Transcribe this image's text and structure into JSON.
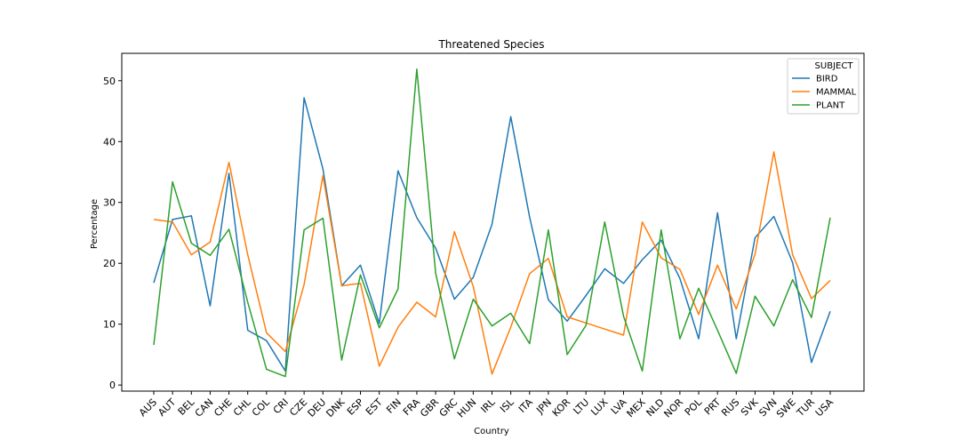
{
  "chart_data": {
    "type": "line",
    "title": "Threatened Species",
    "xlabel": "Country",
    "ylabel": "Percentage",
    "ylim": [
      -1,
      54.5
    ],
    "yticks": [
      0,
      10,
      20,
      30,
      40,
      50
    ],
    "grid": false,
    "legend": {
      "title": "SUBJECT",
      "placement": "top-right"
    },
    "categories": [
      "AUS",
      "AUT",
      "BEL",
      "CAN",
      "CHE",
      "CHL",
      "COL",
      "CRI",
      "CZE",
      "DEU",
      "DNK",
      "ESP",
      "EST",
      "FIN",
      "FRA",
      "GBR",
      "GRC",
      "HUN",
      "IRL",
      "ISL",
      "ITA",
      "JPN",
      "KOR",
      "LTU",
      "LUX",
      "LVA",
      "MEX",
      "NLD",
      "NOR",
      "POL",
      "PRT",
      "RUS",
      "SVK",
      "SVN",
      "SWE",
      "TUR",
      "USA"
    ],
    "series": [
      {
        "name": "BIRD",
        "color": "#1f77b4",
        "values": [
          16.8,
          27.2,
          27.8,
          13.0,
          34.8,
          9.0,
          7.3,
          2.3,
          47.2,
          35.5,
          16.3,
          19.7,
          10.1,
          35.2,
          27.5,
          22.5,
          14.1,
          17.7,
          26.4,
          44.1,
          27.6,
          14.0,
          10.5,
          14.7,
          19.1,
          16.7,
          20.6,
          23.8,
          17.5,
          7.6,
          28.3,
          7.6,
          24.2,
          27.7,
          20.1,
          3.7,
          12.1
        ]
      },
      {
        "name": "MAMMAL",
        "color": "#ff7f0e",
        "values": [
          27.2,
          26.8,
          21.4,
          23.5,
          36.6,
          21.4,
          8.6,
          5.5,
          16.5,
          34.4,
          16.3,
          16.7,
          3.1,
          9.5,
          13.6,
          11.2,
          25.2,
          16.2,
          1.8,
          9.5,
          18.3,
          20.8,
          11.2,
          10.2,
          9.2,
          8.2,
          26.8,
          20.9,
          19.0,
          11.6,
          19.7,
          12.5,
          21.5,
          38.3,
          21.4,
          14.2,
          17.2
        ]
      },
      {
        "name": "PLANT",
        "color": "#2ca02c",
        "values": [
          6.6,
          33.4,
          23.3,
          21.3,
          25.6,
          13.6,
          2.6,
          1.4,
          25.5,
          27.4,
          4.1,
          18.1,
          9.4,
          15.8,
          51.9,
          18.4,
          4.3,
          14.1,
          9.7,
          11.8,
          6.8,
          25.5,
          5.0,
          9.8,
          26.8,
          11.3,
          2.3,
          25.5,
          7.6,
          15.9,
          9.0,
          1.9,
          14.6,
          9.7,
          17.3,
          11.1,
          27.5
        ]
      }
    ]
  }
}
